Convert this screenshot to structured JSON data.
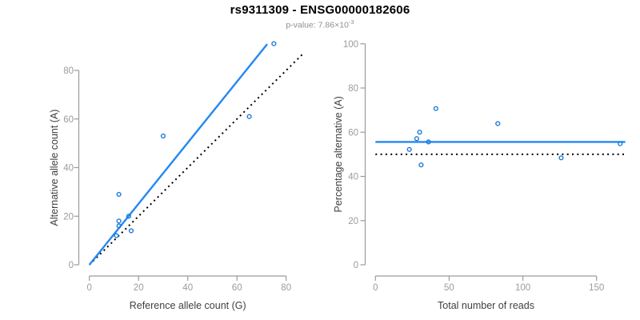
{
  "header": {
    "title": "rs9311309 - ENSG00000182606",
    "subtitle_prefix": "p-value: 7.86×10",
    "subtitle_exponent": "-3"
  },
  "colors": {
    "fit_line_blue": "#2488F0",
    "point_blue": "#1A7CD9",
    "identity_line_black": "#000000",
    "axis_gray": "#9B9B9B",
    "tick_label_gray": "#9B9B9B",
    "axis_title_gray": "#3F3F3F",
    "title_black": "#000000",
    "subtitle_gray": "#8F8F8F",
    "background": "#FFFFFF"
  },
  "chart_data": [
    {
      "name": "ref-vs-alt-count",
      "type": "scatter",
      "xlabel": "Reference allele count (G)",
      "ylabel": "Alternative allele count (A)",
      "xticks": [
        0,
        20,
        40,
        60,
        80
      ],
      "yticks": [
        0,
        20,
        40,
        60,
        80
      ],
      "xlim": [
        0,
        87
      ],
      "ylim": [
        0,
        92
      ],
      "grid": false,
      "points": [
        [
          11,
          12
        ],
        [
          12,
          16
        ],
        [
          12,
          18
        ],
        [
          12,
          29
        ],
        [
          16,
          20
        ],
        [
          17,
          14
        ],
        [
          30,
          53
        ],
        [
          65,
          61
        ],
        [
          75,
          91
        ]
      ],
      "lines": [
        {
          "name": "identity-line",
          "slope": 1,
          "intercept": 0,
          "x_range": [
            0,
            87
          ],
          "style": "dotted",
          "color_key": "identity_line_black",
          "width": 2
        },
        {
          "name": "fit-line",
          "slope": 1.256,
          "intercept": 0,
          "x_range": [
            0,
            72.3
          ],
          "style": "solid",
          "color_key": "fit_line_blue",
          "width": 2.4
        }
      ]
    },
    {
      "name": "pct-alt-vs-total-reads",
      "type": "scatter",
      "xlabel": "Total number of reads",
      "ylabel": "Percentage alternative (A)",
      "xticks": [
        0,
        50,
        100,
        150
      ],
      "yticks": [
        0,
        20,
        40,
        60,
        80,
        100
      ],
      "xlim": [
        0,
        169.5
      ],
      "ylim": [
        0,
        100
      ],
      "grid": false,
      "points": [
        [
          23,
          52.2
        ],
        [
          28,
          57.1
        ],
        [
          30,
          60.0
        ],
        [
          31,
          45.2
        ],
        [
          36,
          55.6
        ],
        [
          41,
          70.7
        ],
        [
          83,
          63.9
        ],
        [
          126,
          48.4
        ],
        [
          166,
          54.8
        ]
      ],
      "lines": [
        {
          "name": "null-line",
          "slope": 0,
          "intercept": 50,
          "x_range": [
            0,
            169.5
          ],
          "style": "dotted",
          "color_key": "identity_line_black",
          "width": 2
        },
        {
          "name": "fit-line",
          "slope": 0,
          "intercept": 55.6,
          "x_range": [
            0,
            169.5
          ],
          "style": "solid",
          "color_key": "fit_line_blue",
          "width": 2.4
        }
      ]
    }
  ]
}
